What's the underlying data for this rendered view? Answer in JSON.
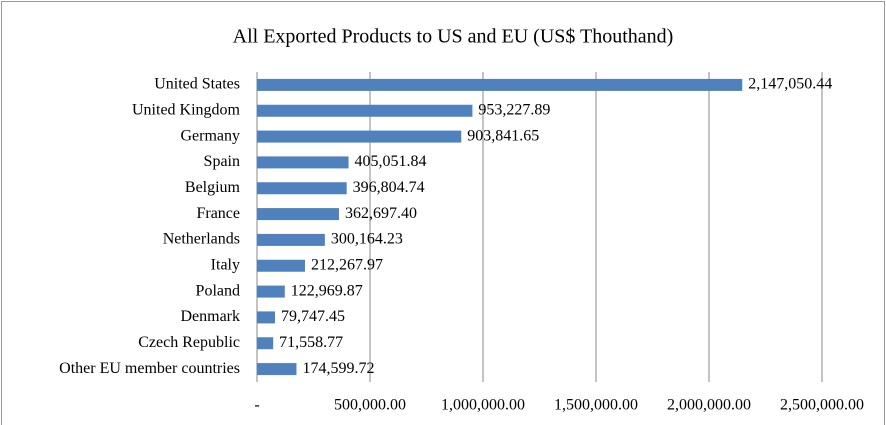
{
  "chart_data": {
    "type": "bar",
    "orientation": "horizontal",
    "title": "All Exported Products to US and EU (US$ Thouthand)",
    "categories": [
      "United States",
      "United Kingdom",
      "Germany",
      "Spain",
      "Belgium",
      "France",
      "Netherlands",
      "Italy",
      "Poland",
      "Denmark",
      "Czech Republic",
      "Other EU member countries"
    ],
    "values": [
      2147050.44,
      953227.89,
      903841.65,
      405051.84,
      396804.74,
      362697.4,
      300164.23,
      212267.97,
      122969.87,
      79747.45,
      71558.77,
      174599.72
    ],
    "value_labels": [
      "2,147,050.44",
      "953,227.89",
      "903,841.65",
      "405,051.84",
      "396,804.74",
      "362,697.40",
      "300,164.23",
      "212,267.97",
      "122,969.87",
      "79,747.45",
      "71,558.77",
      "174,599.72"
    ],
    "color": "#4f81bd",
    "xlim": [
      0,
      2500000
    ],
    "xticks": [
      {
        "value": 0,
        "label": "-"
      },
      {
        "value": 500000,
        "label": "500,000.00"
      },
      {
        "value": 1000000,
        "label": "1,000,000.00"
      },
      {
        "value": 1500000,
        "label": "1,500,000.00"
      },
      {
        "value": 2000000,
        "label": "2,000,000.00"
      },
      {
        "value": 2500000,
        "label": "2,500,000.00"
      }
    ],
    "grid": true
  }
}
